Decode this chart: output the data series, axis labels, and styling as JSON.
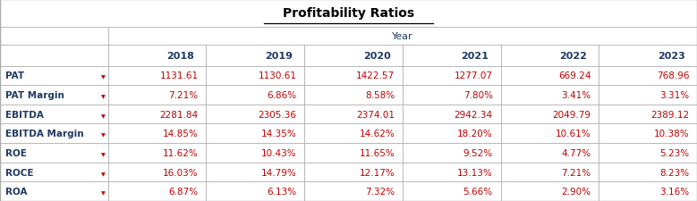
{
  "title": "Profitability Ratios",
  "year_header": "Year",
  "years": [
    "2018",
    "2019",
    "2020",
    "2021",
    "2022",
    "2023"
  ],
  "rows": [
    {
      "label": "PAT",
      "values": [
        "1131.61",
        "1130.61",
        "1422.57",
        "1277.07",
        "669.24",
        "768.96"
      ]
    },
    {
      "label": "PAT Margin",
      "values": [
        "7.21%",
        "6.86%",
        "8.58%",
        "7.80%",
        "3.41%",
        "3.31%"
      ]
    },
    {
      "label": "EBITDA",
      "values": [
        "2281.84",
        "2305.36",
        "2374.01",
        "2942.34",
        "2049.79",
        "2389.12"
      ]
    },
    {
      "label": "EBITDA Margin",
      "values": [
        "14.85%",
        "14.35%",
        "14.62%",
        "18.20%",
        "10.61%",
        "10.38%"
      ]
    },
    {
      "label": "ROE",
      "values": [
        "11.62%",
        "10.43%",
        "11.65%",
        "9.52%",
        "4.77%",
        "5.23%"
      ]
    },
    {
      "label": "ROCE",
      "values": [
        "16.03%",
        "14.79%",
        "12.17%",
        "13.13%",
        "7.21%",
        "8.23%"
      ]
    },
    {
      "label": "ROA",
      "values": [
        "6.87%",
        "6.13%",
        "7.32%",
        "5.66%",
        "2.90%",
        "3.16%"
      ]
    }
  ],
  "bg_color": "#FFFFFF",
  "grid_color": "#AAAAAA",
  "text_color_dark": "#1F3864",
  "text_color_red": "#C00000",
  "title_color": "#000000"
}
